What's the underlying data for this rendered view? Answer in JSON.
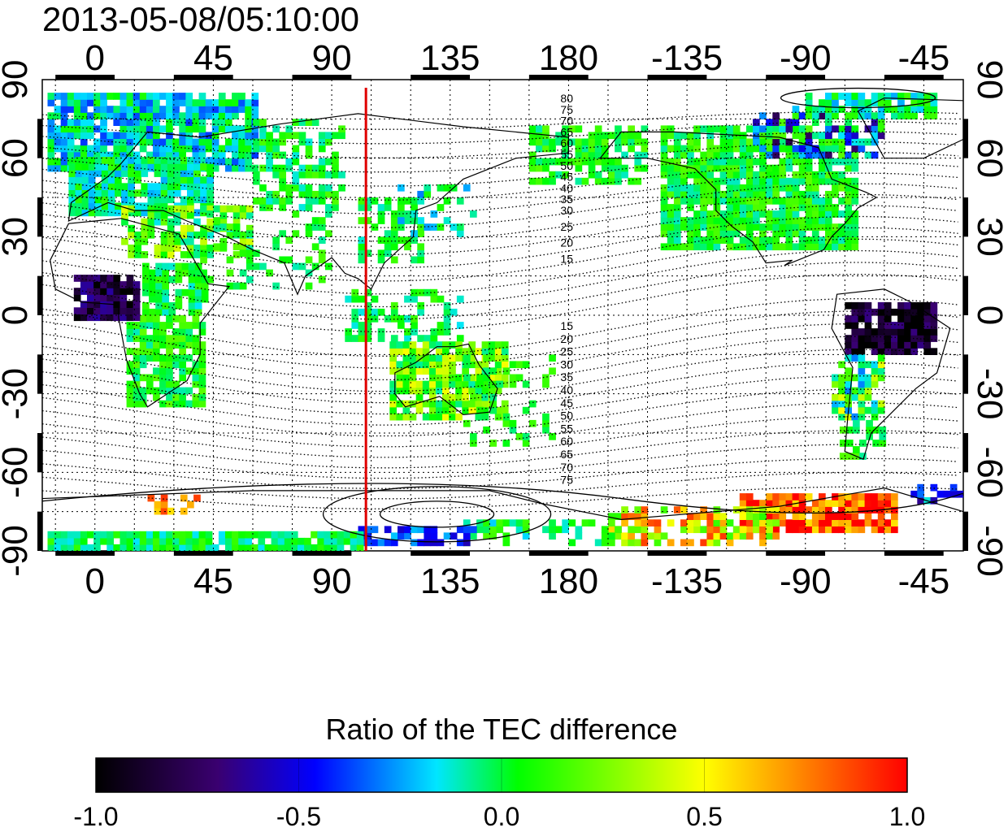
{
  "title": "2013-05-08/05:10:00",
  "map": {
    "x_ticks_top": [
      "0",
      "45",
      "90",
      "135",
      "180",
      "-135",
      "-90",
      "-45"
    ],
    "x_ticks_bottom": [
      "0",
      "45",
      "90",
      "135",
      "180",
      "-135",
      "-90",
      "-45"
    ],
    "y_ticks_left": [
      "90",
      "60",
      "30",
      "0",
      "-30",
      "-60",
      "-90"
    ],
    "y_ticks_right": [
      "90",
      "60",
      "30",
      "0",
      "-30",
      "-60",
      "-90"
    ],
    "x_tick_lon": [
      0,
      45,
      90,
      135,
      180,
      225,
      270,
      315
    ],
    "y_tick_lat": [
      90,
      60,
      30,
      0,
      -30,
      -60,
      -90
    ],
    "lon_range": [
      -20,
      330
    ],
    "lat_range": [
      -90,
      90
    ],
    "marker_longitude": 103,
    "marker_color": "#e00000",
    "contour_labels_north": [
      "80",
      "75",
      "70",
      "65",
      "60",
      "55",
      "50",
      "45",
      "40",
      "35",
      "30",
      "25",
      "20",
      "15"
    ],
    "contour_labels_south": [
      "15",
      "20",
      "25",
      "30",
      "35",
      "40",
      "45",
      "50",
      "55",
      "60",
      "65",
      "70",
      "75"
    ]
  },
  "colorbar": {
    "title": "Ratio of the TEC difference",
    "ticks": [
      "-1.0",
      "-0.5",
      "0.0",
      "0.5",
      "1.0"
    ],
    "min": -1.0,
    "max": 1.0,
    "stops": [
      "#000000",
      "#3a0070",
      "#0000ff",
      "#00e6ff",
      "#00ff00",
      "#ffff00",
      "#ff0000"
    ]
  }
}
